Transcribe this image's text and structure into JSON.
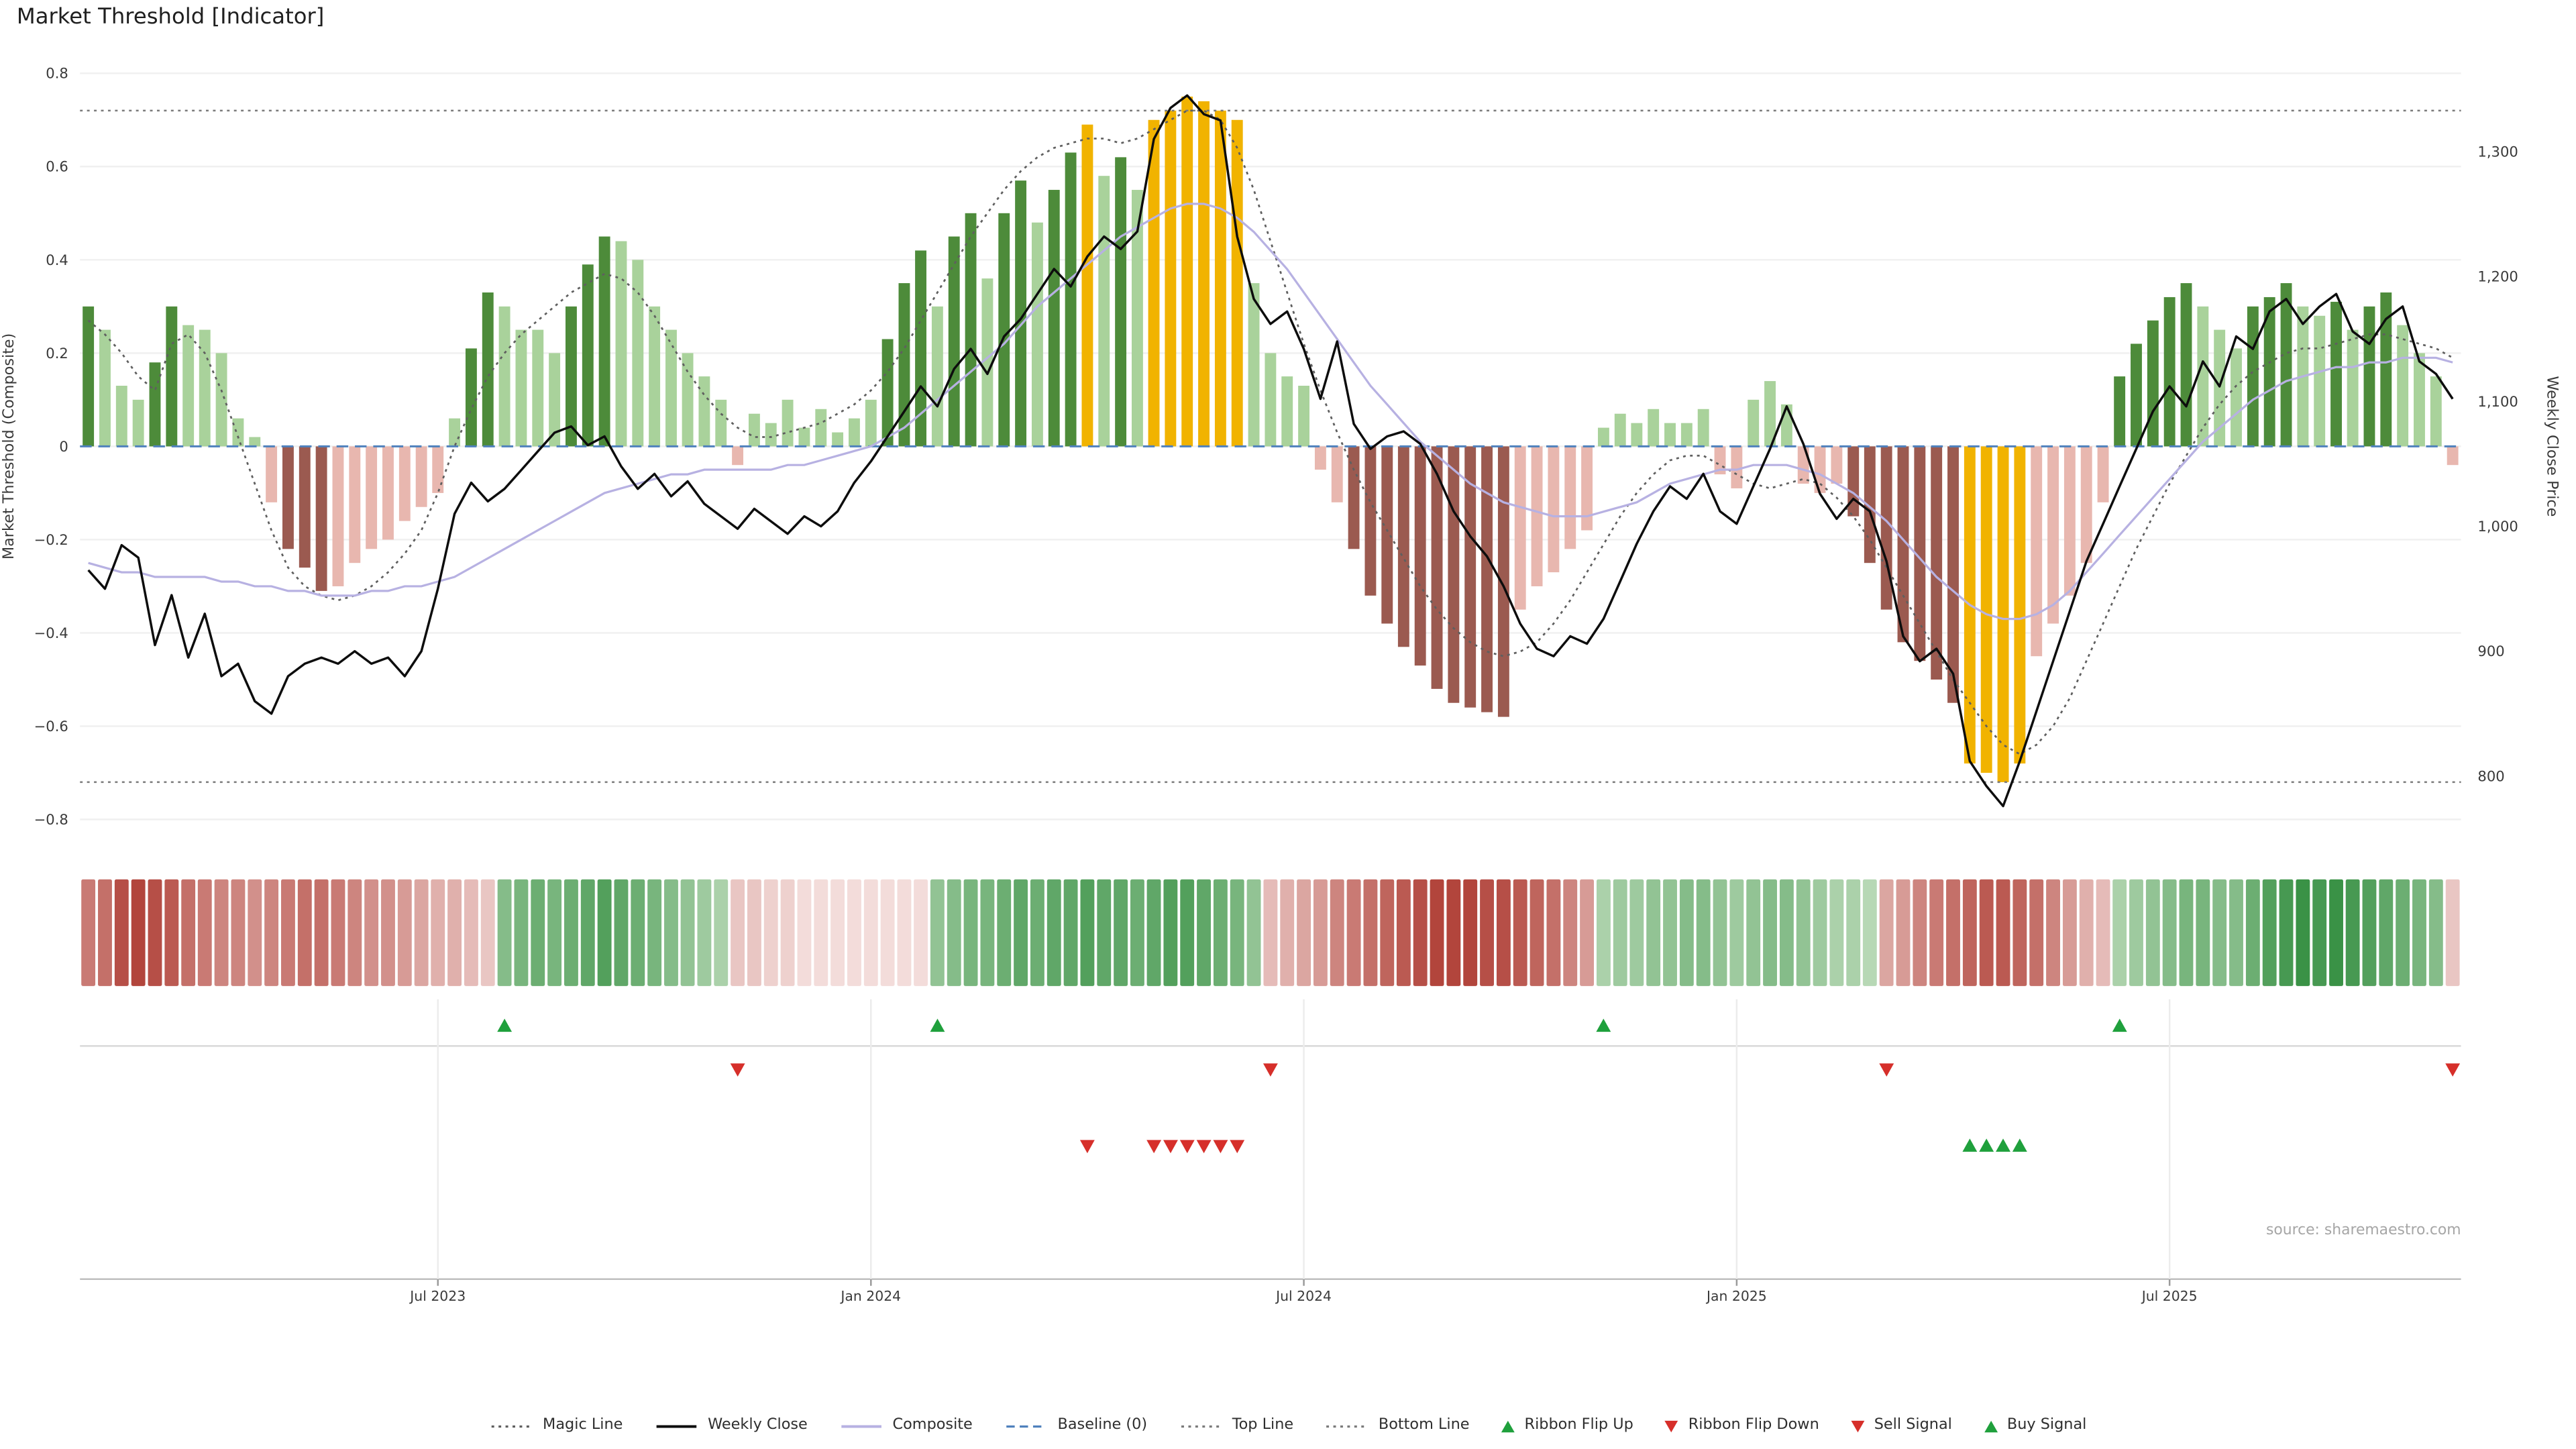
{
  "title": "Market Threshold [Indicator]",
  "source": "source: sharemaestro.com",
  "axes": {
    "left_label": "Market Threshold (Composite)",
    "right_label": "Weekly Close Price"
  },
  "colors": {
    "bar_dark_green": "#4d8b3a",
    "bar_light_green": "#a9d29b",
    "bar_gold": "#f1b300",
    "bar_dark_red": "#9b5a50",
    "bar_light_red": "#e8b7af",
    "weekly_close": "#0d0d0d",
    "composite_line": "#b7b1e2",
    "magic_line": "#5f5f5f",
    "baseline": "#4f81bd",
    "top_bottom_line": "#7a7a7a",
    "ribbon_green_dark": "#2e8b3c",
    "ribbon_green_light": "#ddeed6",
    "ribbon_red_dark": "#b2453c",
    "ribbon_red_light": "#f3dcda",
    "signal_green": "#1fa03c",
    "signal_red": "#d62f2a",
    "grid": "#f0f0f0",
    "axis_text": "#3a3a3a"
  },
  "legend": {
    "items": [
      {
        "label": "Magic Line",
        "glyph": "dotted",
        "color": "#5f5f5f"
      },
      {
        "label": "Weekly Close",
        "glyph": "solid",
        "color": "#0d0d0d"
      },
      {
        "label": "Composite",
        "glyph": "solid",
        "color": "#b7b1e2"
      },
      {
        "label": "Baseline (0)",
        "glyph": "dashed",
        "color": "#4f81bd"
      },
      {
        "label": "Top Line",
        "glyph": "dotted",
        "color": "#7a7a7a"
      },
      {
        "label": "Bottom Line",
        "glyph": "dotted",
        "color": "#7a7a7a"
      },
      {
        "label": "Ribbon Flip Up",
        "glyph": "triangle-up",
        "color": "#1fa03c"
      },
      {
        "label": "Ribbon Flip Down",
        "glyph": "triangle-down",
        "color": "#d62f2a"
      },
      {
        "label": "Sell Signal",
        "glyph": "triangle-down",
        "color": "#d62f2a"
      },
      {
        "label": "Buy Signal",
        "glyph": "triangle-up",
        "color": "#1fa03c"
      }
    ]
  },
  "chart_data": {
    "type": "combo",
    "title": "Market Threshold [Indicator]",
    "n_points": 143,
    "baseline": 0,
    "top_line": 0.72,
    "bottom_line": -0.72,
    "left_axis": {
      "label": "Market Threshold (Composite)",
      "ylim": [
        -0.8,
        0.8
      ],
      "tick_values": [
        0.8,
        0.6,
        0.4,
        0.2,
        0,
        -0.2,
        -0.4,
        -0.6,
        -0.8
      ],
      "tick_labels": [
        "0.8",
        "0.6",
        "0.4",
        "0.2",
        "0",
        "−0.2",
        "−0.4",
        "−0.6",
        "−0.8"
      ]
    },
    "right_axis": {
      "label": "Weekly Close Price",
      "ylim": [
        755,
        1368
      ],
      "tick_values": [
        1300,
        1200,
        1100,
        1000,
        900,
        800
      ],
      "tick_labels": [
        "1,300",
        "1,200",
        "1,100",
        "1,000",
        "900",
        "800"
      ]
    },
    "x_axis": {
      "tick_labels": [
        "Jul 2023",
        "Jan 2024",
        "Jul 2024",
        "Jan 2025",
        "Jul 2025"
      ],
      "tick_indices": [
        21,
        47,
        73,
        99,
        125
      ],
      "n_points": 143
    },
    "threshold_bars": [
      0.3,
      0.25,
      0.13,
      0.1,
      0.18,
      0.3,
      0.26,
      0.25,
      0.2,
      0.06,
      0.02,
      -0.12,
      -0.22,
      -0.26,
      -0.31,
      -0.3,
      -0.25,
      -0.22,
      -0.2,
      -0.16,
      -0.13,
      -0.1,
      0.06,
      0.21,
      0.33,
      0.3,
      0.25,
      0.25,
      0.2,
      0.3,
      0.39,
      0.45,
      0.44,
      0.4,
      0.3,
      0.25,
      0.2,
      0.15,
      0.1,
      -0.04,
      0.07,
      0.05,
      0.1,
      0.04,
      0.08,
      0.03,
      0.06,
      0.1,
      0.23,
      0.35,
      0.42,
      0.3,
      0.45,
      0.5,
      0.36,
      0.5,
      0.57,
      0.48,
      0.55,
      0.63,
      0.69,
      0.58,
      0.62,
      0.55,
      0.7,
      0.72,
      0.75,
      0.74,
      0.72,
      0.7,
      0.35,
      0.2,
      0.15,
      0.13,
      -0.05,
      -0.12,
      -0.22,
      -0.32,
      -0.38,
      -0.43,
      -0.47,
      -0.52,
      -0.55,
      -0.56,
      -0.57,
      -0.58,
      -0.35,
      -0.3,
      -0.27,
      -0.22,
      -0.18,
      0.04,
      0.07,
      0.05,
      0.08,
      0.05,
      0.05,
      0.08,
      -0.06,
      -0.09,
      0.1,
      0.14,
      0.09,
      -0.08,
      -0.1,
      -0.08,
      -0.15,
      -0.25,
      -0.35,
      -0.42,
      -0.46,
      -0.5,
      -0.55,
      -0.68,
      -0.7,
      -0.72,
      -0.68,
      -0.45,
      -0.38,
      -0.32,
      -0.25,
      -0.12,
      0.15,
      0.22,
      0.27,
      0.32,
      0.35,
      0.3,
      0.25,
      0.21,
      0.3,
      0.32,
      0.35,
      0.3,
      0.28,
      0.31,
      0.25,
      0.3,
      0.33,
      0.26,
      0.2,
      0.15,
      -0.04
    ],
    "weekly_close": [
      965,
      950,
      985,
      975,
      905,
      945,
      895,
      930,
      880,
      890,
      860,
      850,
      880,
      890,
      895,
      890,
      900,
      890,
      895,
      880,
      900,
      950,
      1010,
      1035,
      1020,
      1030,
      1045,
      1060,
      1075,
      1080,
      1065,
      1072,
      1048,
      1030,
      1042,
      1024,
      1036,
      1018,
      1008,
      998,
      1014,
      1004,
      994,
      1008,
      1000,
      1012,
      1035,
      1052,
      1072,
      1092,
      1112,
      1096,
      1126,
      1142,
      1122,
      1152,
      1166,
      1186,
      1206,
      1192,
      1216,
      1232,
      1222,
      1236,
      1310,
      1335,
      1345,
      1330,
      1325,
      1232,
      1182,
      1162,
      1172,
      1142,
      1102,
      1148,
      1082,
      1062,
      1072,
      1076,
      1066,
      1042,
      1012,
      992,
      976,
      952,
      922,
      902,
      896,
      912,
      906,
      926,
      956,
      986,
      1012,
      1032,
      1022,
      1042,
      1012,
      1002,
      1032,
      1062,
      1096,
      1066,
      1026,
      1006,
      1022,
      1012,
      972,
      912,
      892,
      902,
      882,
      812,
      792,
      776,
      812,
      852,
      892,
      932,
      972,
      1002,
      1032,
      1062,
      1092,
      1112,
      1096,
      1132,
      1112,
      1152,
      1142,
      1172,
      1182,
      1162,
      1176,
      1186,
      1156,
      1146,
      1166,
      1176,
      1132,
      1122,
      1102
    ],
    "composite": [
      -0.25,
      -0.26,
      -0.27,
      -0.27,
      -0.28,
      -0.28,
      -0.28,
      -0.28,
      -0.29,
      -0.29,
      -0.3,
      -0.3,
      -0.31,
      -0.31,
      -0.32,
      -0.32,
      -0.32,
      -0.31,
      -0.31,
      -0.3,
      -0.3,
      -0.29,
      -0.28,
      -0.26,
      -0.24,
      -0.22,
      -0.2,
      -0.18,
      -0.16,
      -0.14,
      -0.12,
      -0.1,
      -0.09,
      -0.08,
      -0.07,
      -0.06,
      -0.06,
      -0.05,
      -0.05,
      -0.05,
      -0.05,
      -0.05,
      -0.04,
      -0.04,
      -0.03,
      -0.02,
      -0.01,
      0.0,
      0.02,
      0.04,
      0.07,
      0.1,
      0.13,
      0.16,
      0.19,
      0.22,
      0.26,
      0.3,
      0.33,
      0.36,
      0.39,
      0.42,
      0.45,
      0.47,
      0.49,
      0.51,
      0.52,
      0.52,
      0.51,
      0.49,
      0.46,
      0.42,
      0.38,
      0.33,
      0.28,
      0.23,
      0.18,
      0.13,
      0.09,
      0.05,
      0.01,
      -0.02,
      -0.05,
      -0.08,
      -0.1,
      -0.12,
      -0.13,
      -0.14,
      -0.15,
      -0.15,
      -0.15,
      -0.14,
      -0.13,
      -0.12,
      -0.1,
      -0.08,
      -0.07,
      -0.06,
      -0.05,
      -0.05,
      -0.04,
      -0.04,
      -0.04,
      -0.05,
      -0.06,
      -0.08,
      -0.1,
      -0.13,
      -0.16,
      -0.2,
      -0.24,
      -0.28,
      -0.31,
      -0.34,
      -0.36,
      -0.37,
      -0.37,
      -0.36,
      -0.34,
      -0.31,
      -0.27,
      -0.23,
      -0.19,
      -0.15,
      -0.11,
      -0.07,
      -0.03,
      0.01,
      0.04,
      0.07,
      0.1,
      0.12,
      0.14,
      0.15,
      0.16,
      0.17,
      0.17,
      0.18,
      0.18,
      0.19,
      0.19,
      0.19,
      0.18
    ],
    "magic_line": [
      0.27,
      0.24,
      0.2,
      0.15,
      0.12,
      0.22,
      0.24,
      0.2,
      0.12,
      0.02,
      -0.08,
      -0.18,
      -0.26,
      -0.3,
      -0.32,
      -0.33,
      -0.32,
      -0.3,
      -0.27,
      -0.23,
      -0.18,
      -0.1,
      0.0,
      0.08,
      0.15,
      0.2,
      0.24,
      0.27,
      0.3,
      0.33,
      0.35,
      0.37,
      0.36,
      0.33,
      0.28,
      0.22,
      0.16,
      0.11,
      0.07,
      0.04,
      0.02,
      0.02,
      0.03,
      0.04,
      0.05,
      0.07,
      0.09,
      0.12,
      0.16,
      0.21,
      0.27,
      0.33,
      0.39,
      0.45,
      0.5,
      0.55,
      0.59,
      0.62,
      0.64,
      0.65,
      0.66,
      0.66,
      0.65,
      0.66,
      0.68,
      0.7,
      0.72,
      0.72,
      0.7,
      0.64,
      0.55,
      0.44,
      0.33,
      0.22,
      0.12,
      0.03,
      -0.05,
      -0.12,
      -0.18,
      -0.24,
      -0.3,
      -0.35,
      -0.39,
      -0.42,
      -0.44,
      -0.45,
      -0.44,
      -0.42,
      -0.38,
      -0.33,
      -0.27,
      -0.21,
      -0.15,
      -0.1,
      -0.06,
      -0.03,
      -0.02,
      -0.02,
      -0.04,
      -0.06,
      -0.08,
      -0.09,
      -0.08,
      -0.07,
      -0.08,
      -0.11,
      -0.15,
      -0.2,
      -0.26,
      -0.32,
      -0.38,
      -0.44,
      -0.5,
      -0.55,
      -0.6,
      -0.64,
      -0.66,
      -0.64,
      -0.6,
      -0.54,
      -0.46,
      -0.38,
      -0.3,
      -0.22,
      -0.15,
      -0.08,
      -0.02,
      0.04,
      0.09,
      0.13,
      0.16,
      0.18,
      0.2,
      0.21,
      0.21,
      0.22,
      0.23,
      0.24,
      0.24,
      0.23,
      0.22,
      0.21,
      0.19
    ],
    "ribbon": [
      -0.55,
      -0.6,
      -0.75,
      -0.8,
      -0.75,
      -0.7,
      -0.6,
      -0.55,
      -0.5,
      -0.5,
      -0.45,
      -0.5,
      -0.55,
      -0.6,
      -0.6,
      -0.55,
      -0.5,
      -0.45,
      -0.45,
      -0.4,
      -0.35,
      -0.3,
      -0.3,
      -0.25,
      -0.2,
      0.45,
      0.5,
      0.55,
      0.5,
      0.55,
      0.6,
      0.65,
      0.6,
      0.55,
      0.5,
      0.45,
      0.4,
      0.35,
      0.3,
      -0.2,
      -0.2,
      -0.15,
      -0.15,
      -0.1,
      -0.1,
      -0.1,
      -0.1,
      -0.1,
      -0.1,
      -0.1,
      -0.1,
      0.4,
      0.45,
      0.5,
      0.5,
      0.55,
      0.6,
      0.55,
      0.6,
      0.6,
      0.65,
      0.6,
      0.6,
      0.55,
      0.6,
      0.65,
      0.65,
      0.6,
      0.55,
      0.5,
      0.4,
      -0.25,
      -0.3,
      -0.35,
      -0.4,
      -0.5,
      -0.55,
      -0.6,
      -0.65,
      -0.7,
      -0.75,
      -0.8,
      -0.8,
      -0.8,
      -0.75,
      -0.75,
      -0.7,
      -0.65,
      -0.6,
      -0.5,
      -0.4,
      0.3,
      0.35,
      0.35,
      0.4,
      0.4,
      0.45,
      0.45,
      0.4,
      0.35,
      0.4,
      0.45,
      0.45,
      0.4,
      0.35,
      0.3,
      0.3,
      0.25,
      -0.35,
      -0.4,
      -0.5,
      -0.55,
      -0.6,
      -0.65,
      -0.7,
      -0.7,
      -0.65,
      -0.6,
      -0.5,
      -0.4,
      -0.3,
      -0.25,
      0.3,
      0.35,
      0.4,
      0.45,
      0.5,
      0.5,
      0.45,
      0.45,
      0.55,
      0.65,
      0.7,
      0.75,
      0.7,
      0.75,
      0.7,
      0.65,
      0.6,
      0.55,
      0.5,
      0.45,
      -0.2
    ],
    "signals": {
      "ribbon_flip_up": [
        25,
        51,
        91,
        122
      ],
      "ribbon_flip_down": [
        39,
        71,
        108,
        142
      ],
      "sell": [
        60,
        64,
        65,
        66,
        67,
        68,
        69
      ],
      "buy": [
        113,
        114,
        115,
        116
      ]
    }
  }
}
